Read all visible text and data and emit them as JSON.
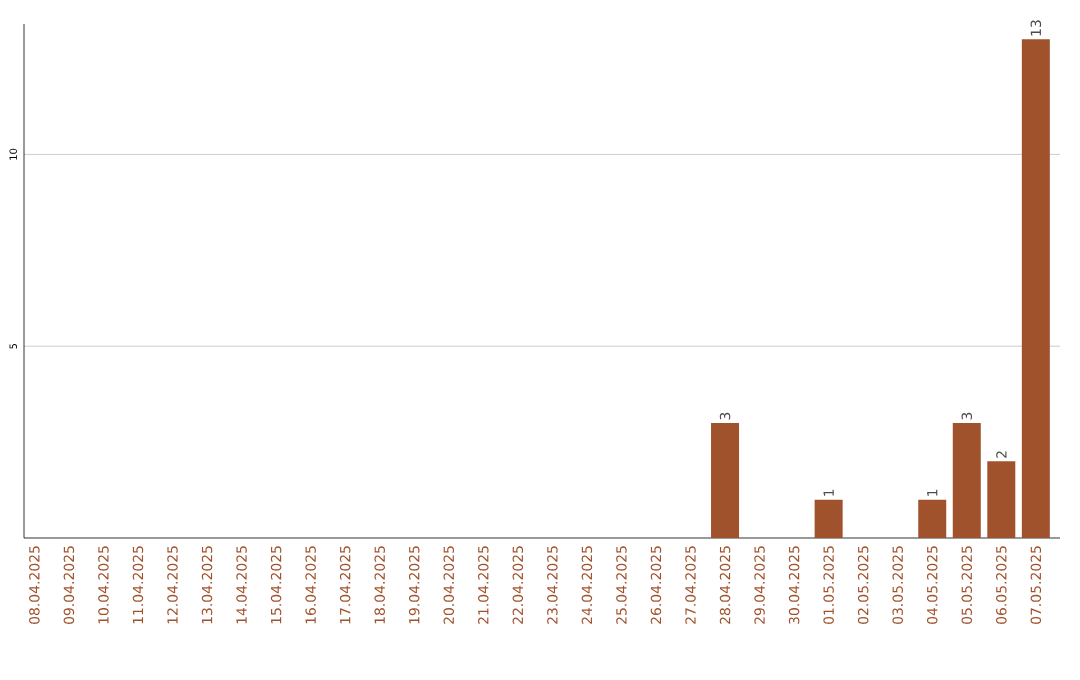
{
  "chart_data": {
    "type": "bar",
    "categories": [
      "08.04.2025",
      "09.04.2025",
      "10.04.2025",
      "11.04.2025",
      "12.04.2025",
      "13.04.2025",
      "14.04.2025",
      "15.04.2025",
      "16.04.2025",
      "17.04.2025",
      "18.04.2025",
      "19.04.2025",
      "20.04.2025",
      "21.04.2025",
      "22.04.2025",
      "23.04.2025",
      "24.04.2025",
      "25.04.2025",
      "26.04.2025",
      "27.04.2025",
      "28.04.2025",
      "29.04.2025",
      "30.04.2025",
      "01.05.2025",
      "02.05.2025",
      "03.05.2025",
      "04.05.2025",
      "05.05.2025",
      "06.05.2025",
      "07.05.2025"
    ],
    "values": [
      0,
      0,
      0,
      0,
      0,
      0,
      0,
      0,
      0,
      0,
      0,
      0,
      0,
      0,
      0,
      0,
      0,
      0,
      0,
      0,
      3,
      0,
      0,
      1,
      0,
      0,
      1,
      3,
      2,
      13
    ],
    "value_labels": [
      null,
      null,
      null,
      null,
      null,
      null,
      null,
      null,
      null,
      null,
      null,
      null,
      null,
      null,
      null,
      null,
      null,
      null,
      null,
      null,
      "3",
      null,
      null,
      "1",
      null,
      null,
      "1",
      "3",
      "2",
      "13"
    ],
    "color": "#a0522d",
    "ylim": [
      0,
      13.4
    ],
    "yticks": [
      5,
      10
    ],
    "grid": "y"
  }
}
